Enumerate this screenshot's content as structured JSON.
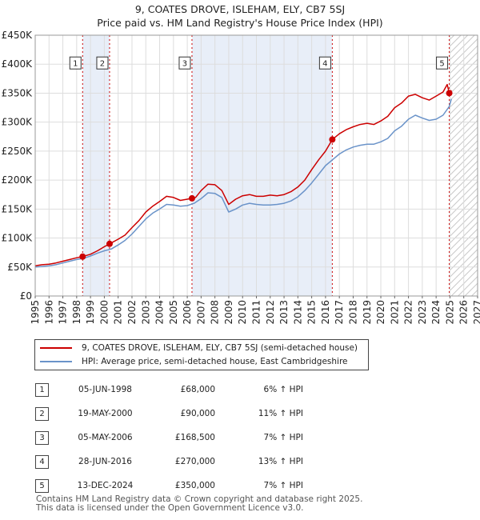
{
  "title_line1": "9, COATES DROVE, ISLEHAM, ELY, CB7 5SJ",
  "title_line2": "Price paid vs. HM Land Registry's House Price Index (HPI)",
  "legend": {
    "property": "9, COATES DROVE, ISLEHAM, ELY, CB7 5SJ (semi-detached house)",
    "hpi": "HPI: Average price, semi-detached house, East Cambridgeshire"
  },
  "sales": [
    {
      "num": "1",
      "date": "05-JUN-1998",
      "price": "£68,000",
      "hpi": "6% ↑ HPI"
    },
    {
      "num": "2",
      "date": "19-MAY-2000",
      "price": "£90,000",
      "hpi": "11% ↑ HPI"
    },
    {
      "num": "3",
      "date": "05-MAY-2006",
      "price": "£168,500",
      "hpi": "7% ↑ HPI"
    },
    {
      "num": "4",
      "date": "28-JUN-2016",
      "price": "£270,000",
      "hpi": "13% ↑ HPI"
    },
    {
      "num": "5",
      "date": "13-DEC-2024",
      "price": "£350,000",
      "hpi": "7% ↑ HPI"
    }
  ],
  "footer_line1": "Contains HM Land Registry data © Crown copyright and database right 2025.",
  "footer_line2": "This data is licensed under the Open Government Licence v3.0.",
  "colors": {
    "property": "#cc0000",
    "hpi": "#6a93c9",
    "shade": "#e8eef8",
    "grid": "#dddddd",
    "sale_line": "#cc0000"
  },
  "chart_data": {
    "type": "line",
    "title": "Price paid vs. HM Land Registry's House Price Index (HPI)",
    "xlim": [
      1995,
      2027
    ],
    "ylim": [
      0,
      450000
    ],
    "x_ticks": [
      "1995",
      "1996",
      "1997",
      "1998",
      "1999",
      "2000",
      "2001",
      "2002",
      "2003",
      "2004",
      "2005",
      "2006",
      "2007",
      "2008",
      "2009",
      "2010",
      "2011",
      "2012",
      "2013",
      "2014",
      "2015",
      "2016",
      "2017",
      "2018",
      "2019",
      "2020",
      "2021",
      "2022",
      "2023",
      "2024",
      "2025",
      "2026",
      "2027"
    ],
    "y_ticks": [
      {
        "value": 0,
        "label": "£0"
      },
      {
        "value": 50000,
        "label": "£50K"
      },
      {
        "value": 100000,
        "label": "£100K"
      },
      {
        "value": 150000,
        "label": "£150K"
      },
      {
        "value": 200000,
        "label": "£200K"
      },
      {
        "value": 250000,
        "label": "£250K"
      },
      {
        "value": 300000,
        "label": "£300K"
      },
      {
        "value": 350000,
        "label": "£350K"
      },
      {
        "value": 400000,
        "label": "£400K"
      },
      {
        "value": 450000,
        "label": "£450K"
      }
    ],
    "shaded_periods": [
      [
        1998.43,
        2000.38
      ],
      [
        2006.34,
        2016.49
      ]
    ],
    "forecast_hatch_from": 2025.0,
    "series": [
      {
        "name": "9, COATES DROVE, ISLEHAM, ELY, CB7 5SJ (semi-detached house)",
        "color": "#cc0000",
        "points": [
          [
            1995.0,
            52000
          ],
          [
            1995.5,
            54000
          ],
          [
            1996.0,
            55000
          ],
          [
            1996.5,
            57000
          ],
          [
            1997.0,
            60000
          ],
          [
            1997.5,
            63000
          ],
          [
            1998.0,
            66000
          ],
          [
            1998.43,
            68000
          ],
          [
            1999.0,
            72000
          ],
          [
            1999.5,
            78000
          ],
          [
            2000.0,
            85000
          ],
          [
            2000.38,
            90000
          ],
          [
            2001.0,
            98000
          ],
          [
            2001.5,
            105000
          ],
          [
            2002.0,
            118000
          ],
          [
            2002.5,
            130000
          ],
          [
            2003.0,
            145000
          ],
          [
            2003.5,
            155000
          ],
          [
            2004.0,
            163000
          ],
          [
            2004.5,
            172000
          ],
          [
            2005.0,
            170000
          ],
          [
            2005.5,
            165000
          ],
          [
            2006.0,
            167000
          ],
          [
            2006.34,
            168500
          ],
          [
            2006.6,
            170000
          ],
          [
            2007.0,
            182000
          ],
          [
            2007.5,
            193000
          ],
          [
            2008.0,
            192000
          ],
          [
            2008.5,
            182000
          ],
          [
            2009.0,
            158000
          ],
          [
            2009.5,
            167000
          ],
          [
            2010.0,
            173000
          ],
          [
            2010.5,
            175000
          ],
          [
            2011.0,
            172000
          ],
          [
            2011.5,
            172000
          ],
          [
            2012.0,
            174000
          ],
          [
            2012.5,
            173000
          ],
          [
            2013.0,
            175000
          ],
          [
            2013.5,
            180000
          ],
          [
            2014.0,
            188000
          ],
          [
            2014.5,
            200000
          ],
          [
            2015.0,
            218000
          ],
          [
            2015.5,
            235000
          ],
          [
            2016.0,
            250000
          ],
          [
            2016.49,
            270000
          ],
          [
            2017.0,
            280000
          ],
          [
            2017.5,
            287000
          ],
          [
            2018.0,
            292000
          ],
          [
            2018.5,
            296000
          ],
          [
            2019.0,
            298000
          ],
          [
            2019.5,
            296000
          ],
          [
            2020.0,
            302000
          ],
          [
            2020.5,
            310000
          ],
          [
            2021.0,
            325000
          ],
          [
            2021.5,
            333000
          ],
          [
            2022.0,
            345000
          ],
          [
            2022.5,
            348000
          ],
          [
            2023.0,
            342000
          ],
          [
            2023.5,
            338000
          ],
          [
            2024.0,
            345000
          ],
          [
            2024.5,
            352000
          ],
          [
            2024.8,
            365000
          ],
          [
            2024.95,
            350000
          ],
          [
            2025.1,
            355000
          ]
        ]
      },
      {
        "name": "HPI: Average price, semi-detached house, East Cambridgeshire",
        "color": "#6a93c9",
        "points": [
          [
            1995.0,
            50000
          ],
          [
            1995.5,
            51000
          ],
          [
            1996.0,
            52000
          ],
          [
            1996.5,
            54000
          ],
          [
            1997.0,
            57000
          ],
          [
            1997.5,
            60000
          ],
          [
            1998.0,
            63000
          ],
          [
            1998.5,
            65000
          ],
          [
            1999.0,
            69000
          ],
          [
            1999.5,
            74000
          ],
          [
            2000.0,
            78000
          ],
          [
            2000.5,
            81000
          ],
          [
            2001.0,
            88000
          ],
          [
            2001.5,
            96000
          ],
          [
            2002.0,
            107000
          ],
          [
            2002.5,
            120000
          ],
          [
            2003.0,
            133000
          ],
          [
            2003.5,
            143000
          ],
          [
            2004.0,
            150000
          ],
          [
            2004.5,
            158000
          ],
          [
            2005.0,
            157000
          ],
          [
            2005.5,
            155000
          ],
          [
            2006.0,
            156000
          ],
          [
            2006.5,
            160000
          ],
          [
            2007.0,
            168000
          ],
          [
            2007.5,
            178000
          ],
          [
            2008.0,
            177000
          ],
          [
            2008.5,
            170000
          ],
          [
            2009.0,
            145000
          ],
          [
            2009.5,
            150000
          ],
          [
            2010.0,
            157000
          ],
          [
            2010.5,
            160000
          ],
          [
            2011.0,
            158000
          ],
          [
            2011.5,
            157000
          ],
          [
            2012.0,
            157000
          ],
          [
            2012.5,
            158000
          ],
          [
            2013.0,
            160000
          ],
          [
            2013.5,
            164000
          ],
          [
            2014.0,
            171000
          ],
          [
            2014.5,
            182000
          ],
          [
            2015.0,
            195000
          ],
          [
            2015.5,
            210000
          ],
          [
            2016.0,
            225000
          ],
          [
            2016.5,
            235000
          ],
          [
            2017.0,
            245000
          ],
          [
            2017.5,
            252000
          ],
          [
            2018.0,
            257000
          ],
          [
            2018.5,
            260000
          ],
          [
            2019.0,
            262000
          ],
          [
            2019.5,
            262000
          ],
          [
            2020.0,
            266000
          ],
          [
            2020.5,
            272000
          ],
          [
            2021.0,
            285000
          ],
          [
            2021.5,
            293000
          ],
          [
            2022.0,
            305000
          ],
          [
            2022.5,
            312000
          ],
          [
            2023.0,
            307000
          ],
          [
            2023.5,
            303000
          ],
          [
            2024.0,
            305000
          ],
          [
            2024.5,
            312000
          ],
          [
            2024.95,
            327000
          ],
          [
            2025.1,
            340000
          ]
        ]
      }
    ],
    "sales_markers": [
      {
        "label": "1",
        "x": 1998.43,
        "value": 68000
      },
      {
        "label": "2",
        "x": 2000.38,
        "value": 90000
      },
      {
        "label": "3",
        "x": 2006.34,
        "value": 168500
      },
      {
        "label": "4",
        "x": 2016.49,
        "value": 270000
      },
      {
        "label": "5",
        "x": 2024.95,
        "value": 350000
      }
    ]
  }
}
